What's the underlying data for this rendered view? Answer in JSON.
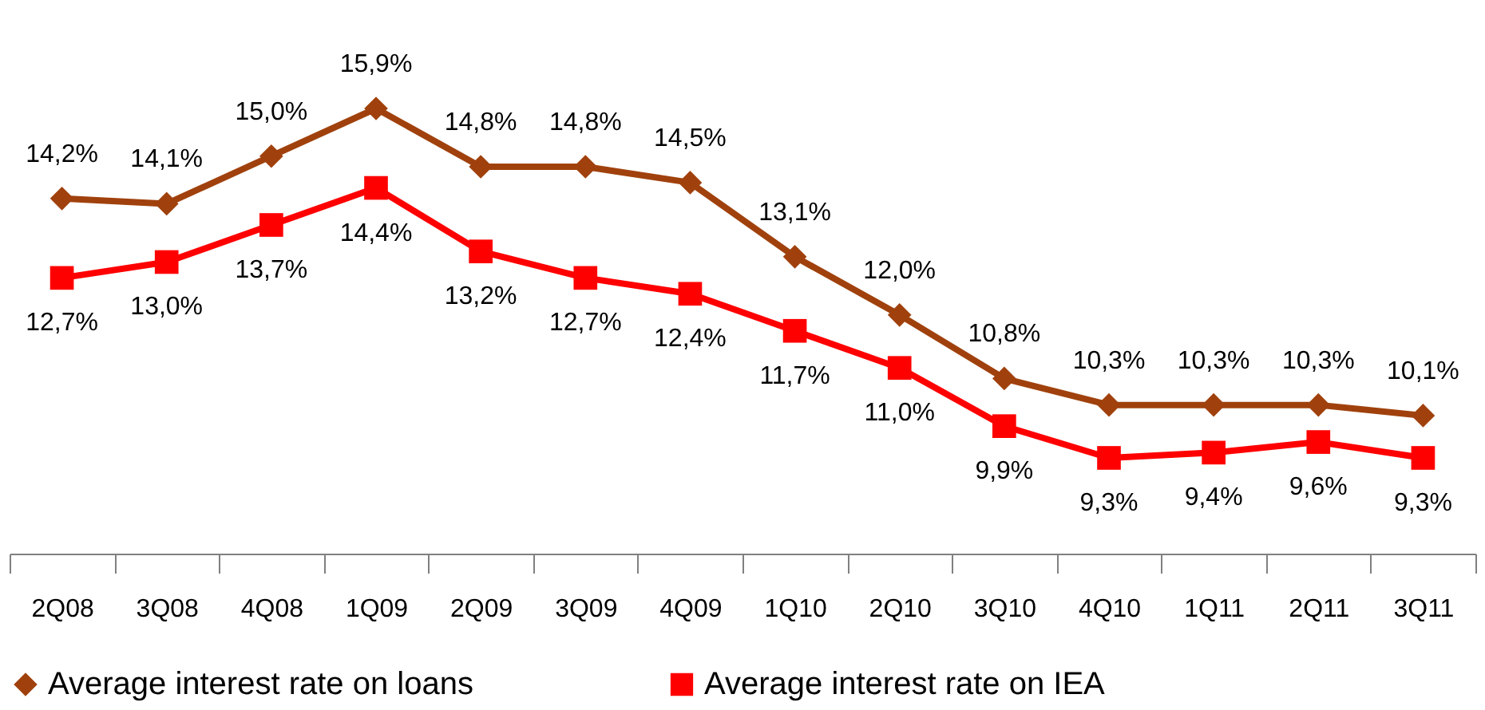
{
  "chart_data": {
    "type": "line",
    "categories": [
      "2Q08",
      "3Q08",
      "4Q08",
      "1Q09",
      "2Q09",
      "3Q09",
      "4Q09",
      "1Q10",
      "2Q10",
      "3Q10",
      "4Q10",
      "1Q11",
      "2Q11",
      "3Q11"
    ],
    "series": [
      {
        "name": "Average interest rate on loans",
        "color": "#a0410d",
        "marker": "diamond",
        "values": [
          14.2,
          14.1,
          15.0,
          15.9,
          14.8,
          14.8,
          14.5,
          13.1,
          12.0,
          10.8,
          10.3,
          10.3,
          10.3,
          10.1
        ],
        "value_labels": [
          "14,2%",
          "14,1%",
          "15,0%",
          "15,9%",
          "14,8%",
          "14,8%",
          "14,5%",
          "13,1%",
          "12,0%",
          "10,8%",
          "10,3%",
          "10,3%",
          "10,3%",
          "10,1%"
        ]
      },
      {
        "name": "Average interest rate on IEA",
        "color": "#ff0000",
        "marker": "square",
        "values": [
          12.7,
          13.0,
          13.7,
          14.4,
          13.2,
          12.7,
          12.4,
          11.7,
          11.0,
          9.9,
          9.3,
          9.4,
          9.6,
          9.3
        ],
        "value_labels": [
          "12,7%",
          "13,0%",
          "13,7%",
          "14,4%",
          "13,2%",
          "12,7%",
          "12,4%",
          "11,7%",
          "11,0%",
          "9,9%",
          "9,3%",
          "9,4%",
          "9,6%",
          "9,3%"
        ]
      }
    ],
    "legend": "bottom",
    "grid": false,
    "line_style": "solid"
  }
}
